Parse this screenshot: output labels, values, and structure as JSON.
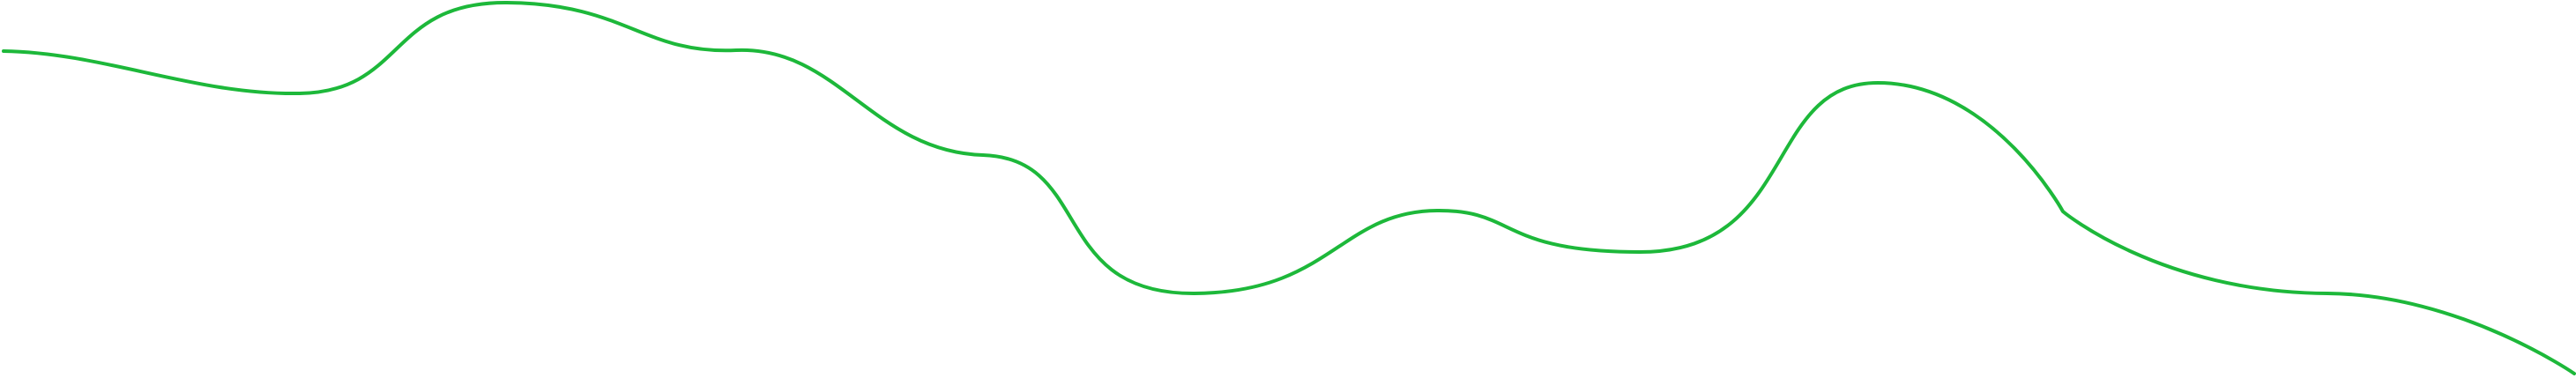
{
  "decoration": {
    "shape": "wavy-line",
    "stroke_color": "#1DB83A",
    "background_color": "#ffffff"
  }
}
